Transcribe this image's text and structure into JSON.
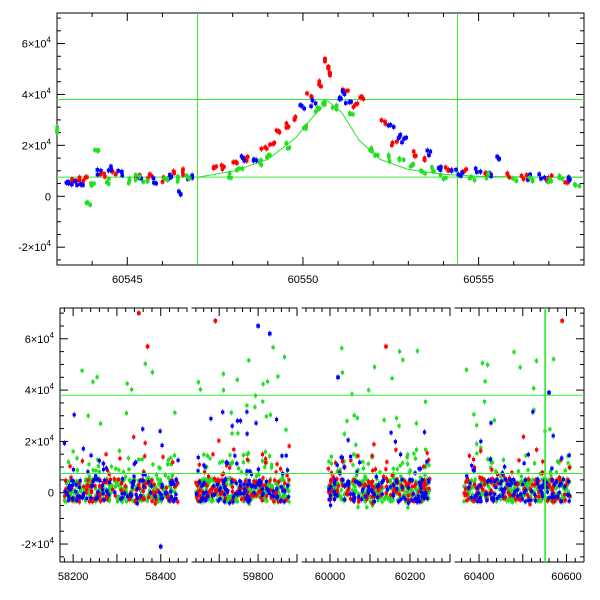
{
  "chart_data": [
    {
      "type": "scatter",
      "title": "",
      "xlabel": "",
      "ylabel": "",
      "xlim": [
        60543,
        60558
      ],
      "ylim": [
        -27000,
        72000
      ],
      "x_ticks": [
        60545,
        60550,
        60555
      ],
      "x_tick_labels": [
        "60545",
        "60550",
        "60555"
      ],
      "y_ticks": [
        -20000,
        0,
        20000,
        40000,
        60000
      ],
      "y_tick_labels": [
        [
          "-2×10",
          "4"
        ],
        [
          "0",
          ""
        ],
        [
          "2×10",
          "4"
        ],
        [
          "4×10",
          "4"
        ],
        [
          "6×10",
          "4"
        ]
      ],
      "vlines": [
        60547.0,
        60554.4
      ],
      "hlines": [
        7500,
        38000
      ],
      "model_curve": {
        "name": "",
        "color": "#2ee02e",
        "x": [
          60547.0,
          60548.0,
          60549.0,
          60549.8,
          60550.3,
          60550.7,
          60551.1,
          60551.6,
          60552.2,
          60553.0,
          60554.0,
          60555.0,
          60556.0,
          60557.0,
          60558.0
        ],
        "y": [
          7500,
          9800,
          14500,
          23000,
          31500,
          37500,
          33000,
          22000,
          14500,
          10500,
          8600,
          7900,
          7650,
          7550,
          7500
        ]
      },
      "series": [
        {
          "color": "#ff0000",
          "points": [
            [
              60543.4,
              6200
            ],
            [
              60543.6,
              7000
            ],
            [
              60543.8,
              6800
            ],
            [
              60544.3,
              8500
            ],
            [
              60544.6,
              9500
            ],
            [
              60545.3,
              7500
            ],
            [
              60545.6,
              8000
            ],
            [
              60546.0,
              6500
            ],
            [
              60546.3,
              8800
            ],
            [
              60546.6,
              9500
            ],
            [
              60547.5,
              10500
            ],
            [
              60547.7,
              11500
            ],
            [
              60548.1,
              13500
            ],
            [
              60548.4,
              15000
            ],
            [
              60548.9,
              19000
            ],
            [
              60549.1,
              21000
            ],
            [
              60549.3,
              26000
            ],
            [
              60549.6,
              28000
            ],
            [
              60549.8,
              31000
            ],
            [
              60550.2,
              40000
            ],
            [
              60550.5,
              44000
            ],
            [
              60550.6,
              54000
            ],
            [
              60550.7,
              50000
            ],
            [
              60550.8,
              48000
            ],
            [
              60551.2,
              42000
            ],
            [
              60551.5,
              36000
            ],
            [
              60551.7,
              38000
            ],
            [
              60552.3,
              29000
            ],
            [
              60552.6,
              21000
            ],
            [
              60553.2,
              17000
            ],
            [
              60553.5,
              15000
            ],
            [
              60554.1,
              10500
            ],
            [
              60554.6,
              9500
            ],
            [
              60555.2,
              8800
            ],
            [
              60555.8,
              8500
            ],
            [
              60556.3,
              7800
            ],
            [
              60557.0,
              7000
            ],
            [
              60557.5,
              6500
            ]
          ]
        },
        {
          "color": "#0000ff",
          "points": [
            [
              60543.3,
              6000
            ],
            [
              60543.5,
              5000
            ],
            [
              60543.7,
              5500
            ],
            [
              60544.2,
              9500
            ],
            [
              60544.5,
              11000
            ],
            [
              60544.8,
              9000
            ],
            [
              60545.4,
              7000
            ],
            [
              60545.8,
              6000
            ],
            [
              60546.2,
              7500
            ],
            [
              60546.5,
              1000
            ],
            [
              60546.8,
              8000
            ],
            [
              60548.3,
              15000
            ],
            [
              60548.6,
              14500
            ],
            [
              60550.0,
              35000
            ],
            [
              60550.3,
              36500
            ],
            [
              60551.0,
              39000
            ],
            [
              60551.1,
              40500
            ],
            [
              60551.3,
              37000
            ],
            [
              60552.5,
              27000
            ],
            [
              60552.7,
              24000
            ],
            [
              60552.9,
              22000
            ],
            [
              60553.6,
              17000
            ],
            [
              60553.9,
              10500
            ],
            [
              60554.3,
              9500
            ],
            [
              60554.5,
              9000
            ],
            [
              60555.0,
              10000
            ],
            [
              60555.4,
              8500
            ],
            [
              60555.6,
              14500
            ],
            [
              60556.4,
              7500
            ],
            [
              60556.8,
              8000
            ],
            [
              60557.6,
              6500
            ]
          ]
        },
        {
          "color": "#22dd22",
          "points": [
            [
              60543.0,
              26000
            ],
            [
              60543.9,
              -2500
            ],
            [
              60544.0,
              5000
            ],
            [
              60544.1,
              18000
            ],
            [
              60544.4,
              6000
            ],
            [
              60545.1,
              6000
            ],
            [
              60545.3,
              7200
            ],
            [
              60545.5,
              5500
            ],
            [
              60546.1,
              6800
            ],
            [
              60546.4,
              6800
            ],
            [
              60546.7,
              7000
            ],
            [
              60547.9,
              8000
            ],
            [
              60548.2,
              10000
            ],
            [
              60548.8,
              13000
            ],
            [
              60549.0,
              15000
            ],
            [
              60549.6,
              20000
            ],
            [
              60550.1,
              27500
            ],
            [
              60550.4,
              34000
            ],
            [
              60550.6,
              36000
            ],
            [
              60550.9,
              35000
            ],
            [
              60551.4,
              33000
            ],
            [
              60551.9,
              18000
            ],
            [
              60552.1,
              17000
            ],
            [
              60552.4,
              15000
            ],
            [
              60552.8,
              14000
            ],
            [
              60553.1,
              12000
            ],
            [
              60553.4,
              9500
            ],
            [
              60553.7,
              10500
            ],
            [
              60554.0,
              8000
            ],
            [
              60554.8,
              7500
            ],
            [
              60555.2,
              7800
            ],
            [
              60556.0,
              6500
            ],
            [
              60556.5,
              7000
            ],
            [
              60557.0,
              6500
            ],
            [
              60557.3,
              7200
            ],
            [
              60557.8,
              5000
            ]
          ]
        }
      ]
    },
    {
      "type": "scatter",
      "title": "",
      "xlabel": "",
      "ylabel": "",
      "ylim": [
        -27000,
        72000
      ],
      "y_ticks": [
        -20000,
        0,
        20000,
        40000,
        60000
      ],
      "y_tick_labels": [
        [
          "-2×10",
          "4"
        ],
        [
          "0",
          ""
        ],
        [
          "2×10",
          "4"
        ],
        [
          "4×10",
          "4"
        ],
        [
          "6×10",
          "4"
        ]
      ],
      "hlines": [
        7500,
        38000
      ],
      "vlines": [
        60550.3,
        60552.1
      ],
      "segments": [
        {
          "xlim": [
            58170,
            58460
          ],
          "x_ticks": [
            58200,
            58400
          ],
          "x_tick_labels": [
            "58200",
            "58400"
          ]
        },
        {
          "xlim": [
            59630,
            59900
          ],
          "x_ticks": [
            59800
          ],
          "x_tick_labels": [
            "59800"
          ]
        },
        {
          "xlim": [
            59930,
            60300
          ],
          "x_ticks": [
            60000,
            60200
          ],
          "x_tick_labels": [
            "60000",
            "60200"
          ]
        },
        {
          "xlim": [
            60345,
            60640
          ],
          "x_ticks": [
            60400,
            60600
          ],
          "x_tick_labels": [
            "60400",
            "60600"
          ]
        }
      ],
      "series": [
        {
          "color": "#22dd22",
          "seasons": [
            [
              58180,
              58440
            ],
            [
              59640,
              59880
            ],
            [
              59995,
              60250
            ],
            [
              60365,
              60610
            ]
          ],
          "peak": 63000,
          "n": 260
        },
        {
          "color": "#ff0000",
          "seasons": [
            [
              58180,
              58440
            ],
            [
              59640,
              59880
            ],
            [
              59995,
              60250
            ],
            [
              60365,
              60610
            ]
          ],
          "peak": 30000,
          "n": 120
        },
        {
          "color": "#0000ff",
          "seasons": [
            [
              58180,
              58440
            ],
            [
              59640,
              59880
            ],
            [
              59995,
              60250
            ],
            [
              60365,
              60610
            ]
          ],
          "peak": 38000,
          "n": 110
        }
      ],
      "highlights": [
        {
          "color": "#ff0000",
          "points": [
            [
              58350,
              70000
            ],
            [
              58370,
              57000
            ],
            [
              59690,
              67000
            ],
            [
              60140,
              57000
            ],
            [
              60590,
              67000
            ]
          ]
        },
        {
          "color": "#0000ff",
          "points": [
            [
              59800,
              65000
            ],
            [
              59830,
              62000
            ],
            [
              60020,
              45000
            ],
            [
              60560,
              39000
            ],
            [
              58400,
              -21000
            ]
          ]
        }
      ]
    }
  ]
}
